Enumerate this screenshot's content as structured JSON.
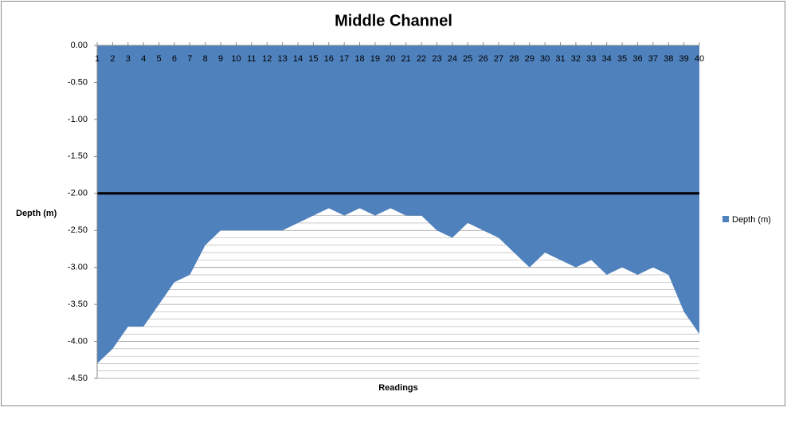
{
  "chart_data": {
    "type": "area",
    "title": "Middle Channel",
    "x_label": "Readings",
    "y_label": "Depth (m)",
    "categories": [
      "1",
      "2",
      "3",
      "4",
      "5",
      "6",
      "7",
      "8",
      "9",
      "10",
      "11",
      "12",
      "13",
      "14",
      "15",
      "16",
      "17",
      "18",
      "19",
      "20",
      "21",
      "22",
      "23",
      "24",
      "25",
      "26",
      "27",
      "28",
      "29",
      "30",
      "31",
      "32",
      "33",
      "34",
      "35",
      "36",
      "37",
      "38",
      "39",
      "40"
    ],
    "series": [
      {
        "name": "Depth (m)",
        "color": "#4f81bd",
        "values": [
          -4.3,
          -4.1,
          -3.8,
          -3.8,
          -3.5,
          -3.2,
          -3.1,
          -2.7,
          -2.5,
          -2.5,
          -2.5,
          -2.5,
          -2.5,
          -2.4,
          -2.3,
          -2.2,
          -2.3,
          -2.2,
          -2.3,
          -2.2,
          -2.3,
          -2.3,
          -2.5,
          -2.6,
          -2.4,
          -2.5,
          -2.6,
          -2.8,
          -3.0,
          -2.8,
          -2.9,
          -3.0,
          -2.9,
          -3.1,
          -3.0,
          -3.1,
          -3.0,
          -3.1,
          -3.6,
          -3.9
        ]
      }
    ],
    "ylim": [
      -4.5,
      0
    ],
    "yticks": [
      {
        "value": 0,
        "label": "0.00"
      },
      {
        "value": -0.5,
        "label": "-0.50"
      },
      {
        "value": -1,
        "label": "-1.00"
      },
      {
        "value": -1.5,
        "label": "-1.50"
      },
      {
        "value": -2,
        "label": "-2.00"
      },
      {
        "value": -2.5,
        "label": "-2.50"
      },
      {
        "value": -3,
        "label": "-3.00"
      },
      {
        "value": -3.5,
        "label": "-3.50"
      },
      {
        "value": -4,
        "label": "-4.00"
      },
      {
        "value": -4.5,
        "label": "-4.50"
      }
    ],
    "grid": true,
    "minor_grid": true,
    "reference_line": -2,
    "legend": "right"
  }
}
